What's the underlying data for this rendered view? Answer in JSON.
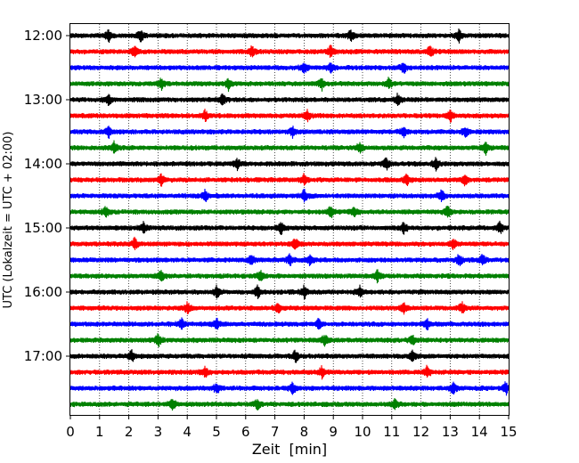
{
  "chart_data": {
    "type": "line",
    "title": "",
    "xlabel": "Zeit  [min]",
    "ylabel": "UTC (Lokalzeit = UTC + 02:00)",
    "xlim": [
      0,
      15
    ],
    "x_ticks": [
      0,
      1,
      2,
      3,
      4,
      5,
      6,
      7,
      8,
      9,
      10,
      11,
      12,
      13,
      14,
      15
    ],
    "x_tick_labels": [
      "0",
      "1",
      "2",
      "3",
      "4",
      "5",
      "6",
      "7",
      "8",
      "9",
      "10",
      "11",
      "12",
      "13",
      "14",
      "15"
    ],
    "y_ticks": [
      "12:00",
      "13:00",
      "14:00",
      "15:00",
      "16:00",
      "17:00"
    ],
    "grid": "vertical dotted",
    "line_colors": [
      "#000000",
      "#ff0000",
      "#0000ff",
      "#008000"
    ],
    "traces": [
      {
        "start": "12:00",
        "spikes": [
          1.3,
          2.4,
          9.6,
          13.3
        ]
      },
      {
        "start": "12:15",
        "spikes": [
          2.2,
          6.2,
          8.9,
          12.3
        ]
      },
      {
        "start": "12:30",
        "spikes": [
          8.0,
          8.9,
          11.4
        ]
      },
      {
        "start": "12:45",
        "spikes": [
          3.1,
          5.4,
          8.6,
          10.9
        ]
      },
      {
        "start": "13:00",
        "spikes": [
          1.3,
          5.2,
          11.2
        ]
      },
      {
        "start": "13:15",
        "spikes": [
          4.6,
          8.1,
          13.0
        ]
      },
      {
        "start": "13:30",
        "spikes": [
          1.3,
          7.6,
          11.4,
          13.5
        ]
      },
      {
        "start": "13:45",
        "spikes": [
          1.5,
          9.9,
          14.2
        ]
      },
      {
        "start": "14:00",
        "spikes": [
          5.7,
          10.8,
          12.5
        ]
      },
      {
        "start": "14:15",
        "spikes": [
          3.1,
          8.0,
          11.5,
          13.5
        ]
      },
      {
        "start": "14:30",
        "spikes": [
          4.6,
          8.0,
          12.7
        ]
      },
      {
        "start": "14:45",
        "spikes": [
          1.2,
          8.9,
          9.7,
          12.9
        ]
      },
      {
        "start": "15:00",
        "spikes": [
          2.5,
          7.2,
          11.4,
          14.7
        ]
      },
      {
        "start": "15:15",
        "spikes": [
          2.2,
          7.7,
          13.1
        ]
      },
      {
        "start": "15:30",
        "spikes": [
          6.2,
          7.5,
          8.2,
          13.3,
          14.1
        ]
      },
      {
        "start": "15:45",
        "spikes": [
          3.1,
          6.5,
          10.5
        ]
      },
      {
        "start": "16:00",
        "spikes": [
          5.0,
          6.4,
          8.0,
          9.9
        ]
      },
      {
        "start": "16:15",
        "spikes": [
          4.0,
          7.1,
          11.4,
          13.4
        ]
      },
      {
        "start": "16:30",
        "spikes": [
          3.8,
          5.0,
          8.5,
          12.2
        ]
      },
      {
        "start": "16:45",
        "spikes": [
          3.0,
          8.7,
          11.7
        ]
      },
      {
        "start": "17:00",
        "spikes": [
          2.1,
          7.7,
          11.7
        ]
      },
      {
        "start": "17:15",
        "spikes": [
          4.6,
          8.6,
          12.2
        ]
      },
      {
        "start": "17:30",
        "spikes": [
          5.0,
          7.6,
          13.1,
          14.9
        ]
      },
      {
        "start": "17:45",
        "spikes": [
          3.5,
          6.4,
          11.1
        ]
      }
    ]
  }
}
